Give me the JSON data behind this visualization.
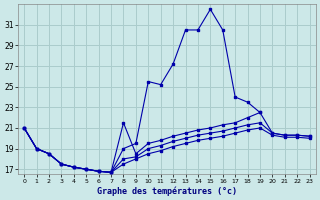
{
  "title": "Graphe des températures (°c)",
  "background_color": "#cce8e8",
  "grid_color": "#aacccc",
  "line_color": "#0000aa",
  "xlim": [
    -0.5,
    23.5
  ],
  "ylim": [
    16.5,
    33
  ],
  "yticks": [
    17,
    19,
    21,
    23,
    25,
    27,
    29,
    31
  ],
  "xticks": [
    0,
    1,
    2,
    3,
    4,
    5,
    6,
    7,
    8,
    9,
    10,
    11,
    12,
    13,
    14,
    15,
    16,
    17,
    18,
    19,
    20,
    21,
    22,
    23
  ],
  "series": [
    {
      "x": [
        0,
        1,
        2,
        3,
        4,
        5,
        6,
        7,
        8,
        9,
        10,
        11,
        12,
        13,
        14,
        15,
        16,
        17,
        18,
        19,
        20,
        21,
        22,
        23
      ],
      "y": [
        21,
        19,
        18.5,
        17.5,
        17.2,
        17.0,
        16.8,
        16.7,
        19.0,
        19.5,
        25.5,
        25.2,
        27.2,
        30.5,
        30.5,
        32.5,
        30.5,
        24.0,
        23.5,
        22.5,
        null,
        null,
        null,
        null
      ]
    },
    {
      "x": [
        0,
        1,
        2,
        3,
        4,
        5,
        6,
        7,
        8,
        9,
        10,
        11,
        12,
        13,
        14,
        15,
        16,
        17,
        18,
        19,
        20,
        21,
        22,
        23
      ],
      "y": [
        21,
        19,
        18.5,
        17.5,
        17.2,
        17.0,
        16.8,
        16.7,
        21.5,
        18.5,
        19.5,
        19.8,
        20.2,
        20.5,
        20.8,
        21.0,
        21.3,
        21.5,
        22.0,
        22.5,
        20.5,
        20.3,
        20.3,
        20.2
      ]
    },
    {
      "x": [
        0,
        1,
        2,
        3,
        4,
        5,
        6,
        7,
        8,
        9,
        10,
        11,
        12,
        13,
        14,
        15,
        16,
        17,
        18,
        19,
        20,
        21,
        22,
        23
      ],
      "y": [
        21,
        19,
        18.5,
        17.5,
        17.2,
        17.0,
        16.8,
        16.7,
        18.0,
        18.2,
        19.0,
        19.3,
        19.7,
        20.0,
        20.3,
        20.5,
        20.7,
        21.0,
        21.3,
        21.5,
        20.5,
        20.3,
        20.3,
        20.2
      ]
    },
    {
      "x": [
        0,
        1,
        2,
        3,
        4,
        5,
        6,
        7,
        8,
        9,
        10,
        11,
        12,
        13,
        14,
        15,
        16,
        17,
        18,
        19,
        20,
        21,
        22,
        23
      ],
      "y": [
        21,
        19,
        18.5,
        17.5,
        17.2,
        17.0,
        16.8,
        16.7,
        17.5,
        18.0,
        18.5,
        18.8,
        19.2,
        19.5,
        19.8,
        20.0,
        20.2,
        20.5,
        20.8,
        21.0,
        20.3,
        20.1,
        20.1,
        20.0
      ]
    }
  ]
}
